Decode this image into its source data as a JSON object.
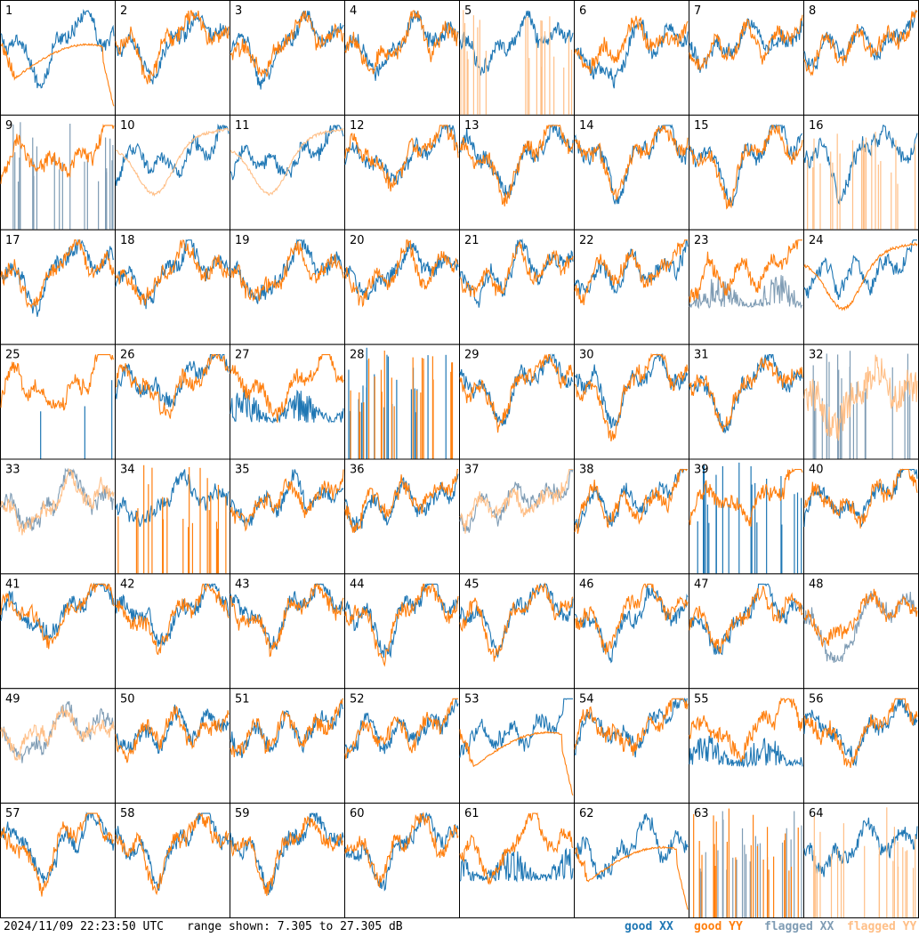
{
  "footer": {
    "timestamp": "2024/11/09 22:23:50 UTC",
    "range_text": "range shown: 7.305 to 27.305 dB"
  },
  "legend": {
    "good_xx": "good XX",
    "good_yy": "good YY",
    "flagged_xx": "flagged XX",
    "flagged_yy": "flagged YY"
  },
  "colors": {
    "good_xx": "#1f77b4",
    "good_yy": "#ff7f0e",
    "flagged_xx": "#7f9cb4",
    "flagged_yy": "#ffbf87",
    "frame": "#000000",
    "background": "#ffffff"
  },
  "chart_data": {
    "type": "line",
    "layout": "8x8 small multiples",
    "y_range_db": [
      7.305,
      27.305
    ],
    "panels": [
      {
        "id": "1",
        "xx": "good",
        "yy": "good",
        "pattern": [
          "normal",
          "dip-plateau-drop"
        ]
      },
      {
        "id": "2",
        "xx": "good",
        "yy": "good",
        "pattern": [
          "normal",
          "normal"
        ]
      },
      {
        "id": "3",
        "xx": "good",
        "yy": "good",
        "pattern": [
          "normal",
          "normal"
        ]
      },
      {
        "id": "4",
        "xx": "good",
        "yy": "good",
        "pattern": [
          "normal",
          "normal"
        ]
      },
      {
        "id": "5",
        "xx": "good",
        "yy": "flagged",
        "pattern": [
          "normal",
          "spikes"
        ]
      },
      {
        "id": "6",
        "xx": "good",
        "yy": "good",
        "pattern": [
          "deep-dip",
          "normal"
        ]
      },
      {
        "id": "7",
        "xx": "good",
        "yy": "good",
        "pattern": [
          "normal",
          "normal"
        ]
      },
      {
        "id": "8",
        "xx": "good",
        "yy": "good",
        "pattern": [
          "normal",
          "normal"
        ]
      },
      {
        "id": "9",
        "xx": "flagged",
        "yy": "good",
        "pattern": [
          "spikes",
          "normal"
        ]
      },
      {
        "id": "10",
        "xx": "good",
        "yy": "flagged",
        "pattern": [
          "normal",
          "dip-smooth"
        ]
      },
      {
        "id": "11",
        "xx": "good",
        "yy": "flagged",
        "pattern": [
          "normal",
          "dip-smooth"
        ]
      },
      {
        "id": "12",
        "xx": "good",
        "yy": "good",
        "pattern": [
          "normal",
          "normal"
        ]
      },
      {
        "id": "13",
        "xx": "good",
        "yy": "good",
        "pattern": [
          "normal",
          "normal"
        ]
      },
      {
        "id": "14",
        "xx": "good",
        "yy": "good",
        "pattern": [
          "normal",
          "normal"
        ]
      },
      {
        "id": "15",
        "xx": "good",
        "yy": "good",
        "pattern": [
          "normal",
          "normal"
        ]
      },
      {
        "id": "16",
        "xx": "good",
        "yy": "flagged",
        "pattern": [
          "normal",
          "spikes"
        ]
      },
      {
        "id": "17",
        "xx": "good",
        "yy": "good",
        "pattern": [
          "normal",
          "normal"
        ]
      },
      {
        "id": "18",
        "xx": "good",
        "yy": "good",
        "pattern": [
          "normal",
          "normal"
        ]
      },
      {
        "id": "19",
        "xx": "good",
        "yy": "good",
        "pattern": [
          "normal",
          "normal"
        ]
      },
      {
        "id": "20",
        "xx": "good",
        "yy": "good",
        "pattern": [
          "normal",
          "normal"
        ]
      },
      {
        "id": "21",
        "xx": "good",
        "yy": "good",
        "pattern": [
          "normal",
          "normal"
        ]
      },
      {
        "id": "22",
        "xx": "good",
        "yy": "good",
        "pattern": [
          "normal",
          "normal"
        ]
      },
      {
        "id": "23",
        "xx": "flagged",
        "yy": "good",
        "pattern": [
          "noisy-low",
          "normal"
        ]
      },
      {
        "id": "24",
        "xx": "good",
        "yy": "good",
        "pattern": [
          "normal",
          "dip-smooth"
        ]
      },
      {
        "id": "25",
        "xx": "good",
        "yy": "good",
        "pattern": [
          "sparse",
          "normal"
        ]
      },
      {
        "id": "26",
        "xx": "good",
        "yy": "good",
        "pattern": [
          "normal",
          "normal"
        ]
      },
      {
        "id": "27",
        "xx": "good",
        "yy": "good",
        "pattern": [
          "noisy-low",
          "normal"
        ]
      },
      {
        "id": "28",
        "xx": "good",
        "yy": "good",
        "pattern": [
          "spikes",
          "spikes"
        ]
      },
      {
        "id": "29",
        "xx": "good",
        "yy": "good",
        "pattern": [
          "normal",
          "normal"
        ]
      },
      {
        "id": "30",
        "xx": "good",
        "yy": "good",
        "pattern": [
          "normal",
          "normal"
        ]
      },
      {
        "id": "31",
        "xx": "good",
        "yy": "good",
        "pattern": [
          "normal",
          "normal"
        ]
      },
      {
        "id": "32",
        "xx": "flagged",
        "yy": "flagged",
        "pattern": [
          "spikes",
          "normal-wide"
        ]
      },
      {
        "id": "33",
        "xx": "flagged",
        "yy": "flagged",
        "pattern": [
          "normal",
          "normal"
        ]
      },
      {
        "id": "34",
        "xx": "good",
        "yy": "good",
        "pattern": [
          "normal",
          "spikes"
        ]
      },
      {
        "id": "35",
        "xx": "good",
        "yy": "good",
        "pattern": [
          "normal",
          "normal"
        ]
      },
      {
        "id": "36",
        "xx": "good",
        "yy": "good",
        "pattern": [
          "normal",
          "normal"
        ]
      },
      {
        "id": "37",
        "xx": "flagged",
        "yy": "flagged",
        "pattern": [
          "normal",
          "normal"
        ]
      },
      {
        "id": "38",
        "xx": "good",
        "yy": "good",
        "pattern": [
          "normal",
          "normal"
        ]
      },
      {
        "id": "39",
        "xx": "good",
        "yy": "good",
        "pattern": [
          "spikes",
          "normal"
        ]
      },
      {
        "id": "40",
        "xx": "good",
        "yy": "good",
        "pattern": [
          "normal",
          "normal"
        ]
      },
      {
        "id": "41",
        "xx": "good",
        "yy": "good",
        "pattern": [
          "normal",
          "normal"
        ]
      },
      {
        "id": "42",
        "xx": "good",
        "yy": "good",
        "pattern": [
          "normal",
          "normal"
        ]
      },
      {
        "id": "43",
        "xx": "good",
        "yy": "good",
        "pattern": [
          "normal",
          "normal"
        ]
      },
      {
        "id": "44",
        "xx": "good",
        "yy": "good",
        "pattern": [
          "normal",
          "normal"
        ]
      },
      {
        "id": "45",
        "xx": "good",
        "yy": "good",
        "pattern": [
          "normal",
          "normal"
        ]
      },
      {
        "id": "46",
        "xx": "good",
        "yy": "good",
        "pattern": [
          "normal",
          "normal"
        ]
      },
      {
        "id": "47",
        "xx": "good",
        "yy": "good",
        "pattern": [
          "normal",
          "normal"
        ]
      },
      {
        "id": "48",
        "xx": "flagged",
        "yy": "good",
        "pattern": [
          "deep-dip",
          "normal"
        ]
      },
      {
        "id": "49",
        "xx": "flagged",
        "yy": "flagged",
        "pattern": [
          "normal",
          "normal"
        ]
      },
      {
        "id": "50",
        "xx": "good",
        "yy": "good",
        "pattern": [
          "normal",
          "normal"
        ]
      },
      {
        "id": "51",
        "xx": "good",
        "yy": "good",
        "pattern": [
          "normal",
          "normal"
        ]
      },
      {
        "id": "52",
        "xx": "good",
        "yy": "good",
        "pattern": [
          "normal",
          "normal"
        ]
      },
      {
        "id": "53",
        "xx": "good",
        "yy": "good",
        "pattern": [
          "normal",
          "dip-plateau-drop"
        ]
      },
      {
        "id": "54",
        "xx": "good",
        "yy": "good",
        "pattern": [
          "normal",
          "normal"
        ]
      },
      {
        "id": "55",
        "xx": "good",
        "yy": "good",
        "pattern": [
          "noisy-low",
          "normal"
        ]
      },
      {
        "id": "56",
        "xx": "good",
        "yy": "good",
        "pattern": [
          "normal",
          "normal"
        ]
      },
      {
        "id": "57",
        "xx": "good",
        "yy": "good",
        "pattern": [
          "normal",
          "normal"
        ]
      },
      {
        "id": "58",
        "xx": "good",
        "yy": "good",
        "pattern": [
          "normal",
          "normal"
        ]
      },
      {
        "id": "59",
        "xx": "good",
        "yy": "good",
        "pattern": [
          "normal",
          "normal"
        ]
      },
      {
        "id": "60",
        "xx": "good",
        "yy": "good",
        "pattern": [
          "normal",
          "normal"
        ]
      },
      {
        "id": "61",
        "xx": "good",
        "yy": "good",
        "pattern": [
          "noisy-low",
          "normal"
        ]
      },
      {
        "id": "62",
        "xx": "good",
        "yy": "good",
        "pattern": [
          "normal",
          "dip-plateau-drop"
        ]
      },
      {
        "id": "63",
        "xx": "flagged",
        "yy": "good",
        "pattern": [
          "spikes",
          "spikes"
        ]
      },
      {
        "id": "64",
        "xx": "good",
        "yy": "flagged",
        "pattern": [
          "normal",
          "spikes"
        ]
      }
    ]
  }
}
